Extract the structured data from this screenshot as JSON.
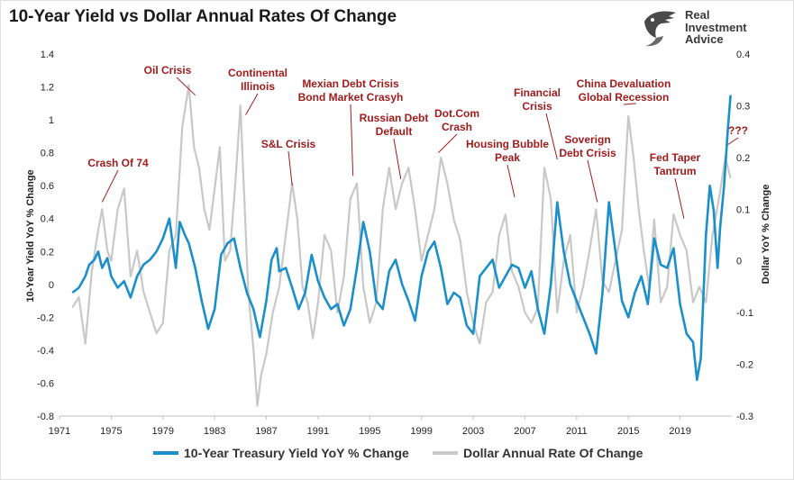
{
  "title": "10-Year Yield vs Dollar Annual Rates Of Change",
  "logo": {
    "line1": "Real",
    "line2": "Investment",
    "line3": "Advice",
    "icon": "eagle-head-icon"
  },
  "colors": {
    "yield": "#1a8fc9",
    "dollar": "#c8c8c8",
    "annotation": "#a01c1c"
  },
  "chart_data": {
    "type": "line",
    "title": "10-Year Yield vs Dollar Annual Rates Of Change",
    "xlabel": "",
    "ylabel_left": "10-Year Yield YoY % Change",
    "ylabel_right": "Dollar YoY % Change",
    "xlim": [
      1971,
      2023
    ],
    "ylim_left": [
      -0.8,
      1.4
    ],
    "ylim_right": [
      -0.3,
      0.4
    ],
    "x_ticks": [
      "1971",
      "1975",
      "1979",
      "1983",
      "1987",
      "1991",
      "1995",
      "1999",
      "2003",
      "2007",
      "2011",
      "2015",
      "2019"
    ],
    "y_ticks_left": [
      "1.4",
      "1.2",
      "1",
      "0.8",
      "0.6",
      "0.4",
      "0.2",
      "0",
      "-0.2",
      "-0.4",
      "-0.6",
      "-0.8"
    ],
    "y_ticks_right": [
      "0.4",
      "0.3",
      "0.2",
      "0.1",
      "0",
      "-0.1",
      "-0.2",
      "-0.3"
    ],
    "legend": "bottom",
    "series": [
      {
        "name": "10-Year Treasury Yield YoY % Change",
        "axis": "left",
        "color": "#1a8fc9",
        "x": [
          1972.0,
          1972.5,
          1973.0,
          1973.3,
          1973.7,
          1974.0,
          1974.3,
          1974.7,
          1975.0,
          1975.5,
          1976.0,
          1976.5,
          1977.0,
          1977.5,
          1978.0,
          1978.5,
          1979.0,
          1979.5,
          1980.0,
          1980.3,
          1980.7,
          1981.0,
          1981.5,
          1982.0,
          1982.5,
          1983.0,
          1983.5,
          1984.0,
          1984.5,
          1985.0,
          1985.5,
          1986.0,
          1986.5,
          1987.0,
          1987.4,
          1987.8,
          1988.0,
          1988.5,
          1989.0,
          1989.5,
          1990.0,
          1990.5,
          1991.0,
          1991.5,
          1992.0,
          1992.5,
          1993.0,
          1993.5,
          1994.0,
          1994.5,
          1995.0,
          1995.5,
          1996.0,
          1996.5,
          1997.0,
          1997.5,
          1998.0,
          1998.5,
          1999.0,
          1999.5,
          2000.0,
          2000.5,
          2001.0,
          2001.5,
          2002.0,
          2002.5,
          2003.0,
          2003.5,
          2004.0,
          2004.5,
          2005.0,
          2005.5,
          2006.0,
          2006.5,
          2007.0,
          2007.5,
          2008.0,
          2008.5,
          2009.0,
          2009.5,
          2010.0,
          2010.5,
          2011.0,
          2011.5,
          2012.0,
          2012.5,
          2013.0,
          2013.5,
          2014.0,
          2014.5,
          2015.0,
          2015.5,
          2016.0,
          2016.5,
          2017.0,
          2017.5,
          2018.0,
          2018.5,
          2019.0,
          2019.5,
          2020.0,
          2020.3,
          2020.6,
          2021.0,
          2021.3,
          2021.6,
          2021.9,
          2022.1,
          2022.4,
          2022.7,
          2022.9
        ],
        "values": [
          -0.05,
          -0.02,
          0.05,
          0.12,
          0.15,
          0.2,
          0.1,
          0.16,
          0.05,
          -0.02,
          0.02,
          -0.08,
          0.05,
          0.12,
          0.15,
          0.2,
          0.28,
          0.4,
          0.1,
          0.38,
          0.3,
          0.25,
          0.1,
          -0.1,
          -0.27,
          -0.15,
          0.18,
          0.25,
          0.28,
          0.1,
          -0.05,
          -0.15,
          -0.32,
          -0.1,
          0.15,
          0.22,
          0.08,
          0.1,
          -0.02,
          -0.15,
          -0.05,
          0.18,
          0.02,
          -0.08,
          -0.15,
          -0.12,
          -0.25,
          -0.15,
          0.1,
          0.38,
          0.2,
          -0.1,
          -0.15,
          0.08,
          0.15,
          0.0,
          -0.1,
          -0.22,
          0.05,
          0.2,
          0.26,
          0.1,
          -0.12,
          -0.05,
          -0.08,
          -0.25,
          -0.3,
          0.05,
          0.1,
          0.15,
          -0.02,
          0.05,
          0.12,
          0.1,
          -0.02,
          0.08,
          -0.15,
          -0.3,
          0.0,
          0.5,
          0.2,
          0.0,
          -0.1,
          -0.2,
          -0.3,
          -0.42,
          -0.05,
          0.5,
          0.2,
          -0.1,
          -0.2,
          -0.05,
          0.05,
          -0.12,
          0.28,
          0.12,
          0.1,
          0.22,
          -0.12,
          -0.3,
          -0.35,
          -0.58,
          -0.45,
          0.3,
          0.6,
          0.45,
          0.1,
          0.35,
          0.6,
          0.95,
          1.15
        ]
      },
      {
        "name": "Dollar Annual Rate Of Change",
        "axis": "right",
        "color": "#c8c8c8",
        "x": [
          1972.0,
          1972.5,
          1973.0,
          1973.5,
          1974.0,
          1974.3,
          1974.7,
          1975.0,
          1975.5,
          1976.0,
          1976.5,
          1977.0,
          1977.5,
          1978.0,
          1978.5,
          1979.0,
          1979.5,
          1980.0,
          1980.5,
          1981.0,
          1981.4,
          1981.8,
          1982.2,
          1982.6,
          1983.0,
          1983.4,
          1983.8,
          1984.2,
          1984.6,
          1985.0,
          1985.3,
          1985.6,
          1986.0,
          1986.3,
          1986.6,
          1987.0,
          1987.5,
          1988.0,
          1988.5,
          1989.0,
          1989.4,
          1989.8,
          1990.2,
          1990.6,
          1991.0,
          1991.5,
          1992.0,
          1992.5,
          1993.0,
          1993.5,
          1994.0,
          1994.5,
          1995.0,
          1995.5,
          1996.0,
          1996.5,
          1997.0,
          1997.5,
          1998.0,
          1998.5,
          1999.0,
          1999.5,
          2000.0,
          2000.5,
          2001.0,
          2001.5,
          2002.0,
          2002.5,
          2003.0,
          2003.5,
          2004.0,
          2004.5,
          2005.0,
          2005.5,
          2006.0,
          2006.5,
          2007.0,
          2007.5,
          2008.0,
          2008.5,
          2009.0,
          2009.5,
          2010.0,
          2010.5,
          2011.0,
          2011.5,
          2012.0,
          2012.5,
          2013.0,
          2013.5,
          2014.0,
          2014.5,
          2015.0,
          2015.4,
          2015.8,
          2016.2,
          2016.6,
          2017.0,
          2017.5,
          2018.0,
          2018.5,
          2019.0,
          2019.5,
          2020.0,
          2020.5,
          2021.0,
          2021.5,
          2022.0,
          2022.5,
          2022.9
        ],
        "values": [
          -0.09,
          -0.07,
          -0.16,
          -0.02,
          0.06,
          0.1,
          0.02,
          0.0,
          0.1,
          0.14,
          -0.03,
          0.02,
          -0.06,
          -0.1,
          -0.14,
          -0.12,
          0.02,
          0.05,
          0.26,
          0.34,
          0.22,
          0.18,
          0.1,
          0.06,
          0.14,
          0.22,
          0.0,
          0.02,
          0.15,
          0.3,
          0.12,
          -0.06,
          -0.17,
          -0.28,
          -0.22,
          -0.18,
          -0.1,
          -0.05,
          0.05,
          0.15,
          0.08,
          -0.05,
          -0.08,
          -0.15,
          -0.08,
          0.05,
          0.02,
          -0.1,
          -0.03,
          0.12,
          0.15,
          -0.05,
          -0.12,
          -0.08,
          0.1,
          0.18,
          0.1,
          0.15,
          0.18,
          0.1,
          0.0,
          0.05,
          0.1,
          0.2,
          0.15,
          0.08,
          0.04,
          -0.06,
          -0.12,
          -0.16,
          -0.08,
          -0.06,
          0.05,
          0.09,
          -0.02,
          -0.05,
          -0.1,
          -0.12,
          -0.09,
          0.18,
          0.12,
          -0.1,
          0.0,
          0.05,
          -0.1,
          -0.05,
          0.02,
          0.1,
          -0.04,
          -0.06,
          0.0,
          0.06,
          0.28,
          0.2,
          0.1,
          0.02,
          -0.05,
          0.08,
          -0.08,
          -0.05,
          0.09,
          0.05,
          0.02,
          -0.08,
          -0.05,
          -0.08,
          0.05,
          0.12,
          0.2,
          0.16
        ]
      }
    ],
    "annotations": [
      {
        "lines": [
          "Crash Of 74"
        ],
        "x": 1974.3,
        "y": 0.5
      },
      {
        "lines": [
          "Oil Crisis"
        ],
        "x": 1981.5,
        "y": 1.15
      },
      {
        "lines": [
          "Continental",
          "Illinois"
        ],
        "x": 1985.4,
        "y": 1.03
      },
      {
        "lines": [
          "S&L Crisis"
        ],
        "x": 1989.0,
        "y": 0.6
      },
      {
        "lines": [
          "Mexian Debt Crisis",
          "Bond Market Crasyh"
        ],
        "x": 1993.7,
        "y": 0.66
      },
      {
        "lines": [
          "Russian Debt",
          "Default"
        ],
        "x": 1997.4,
        "y": 0.64
      },
      {
        "lines": [
          "Dot.Com",
          "Crash"
        ],
        "x": 2000.3,
        "y": 0.8
      },
      {
        "lines": [
          "Housing Bubble",
          "Peak"
        ],
        "x": 2006.2,
        "y": 0.53
      },
      {
        "lines": [
          "Financial",
          "Crisis"
        ],
        "x": 2009.5,
        "y": 0.76
      },
      {
        "lines": [
          "Soverign",
          "Debt Crisis"
        ],
        "x": 2012.6,
        "y": 0.5
      },
      {
        "lines": [
          "China Devaluation",
          "Global Recession"
        ],
        "x": 2015.6,
        "y": 1.1
      },
      {
        "lines": [
          "Fed Taper",
          "Tantrum"
        ],
        "x": 2019.3,
        "y": 0.4
      },
      {
        "lines": [
          "???"
        ],
        "x": 2022.7,
        "y": 0.85
      }
    ]
  }
}
